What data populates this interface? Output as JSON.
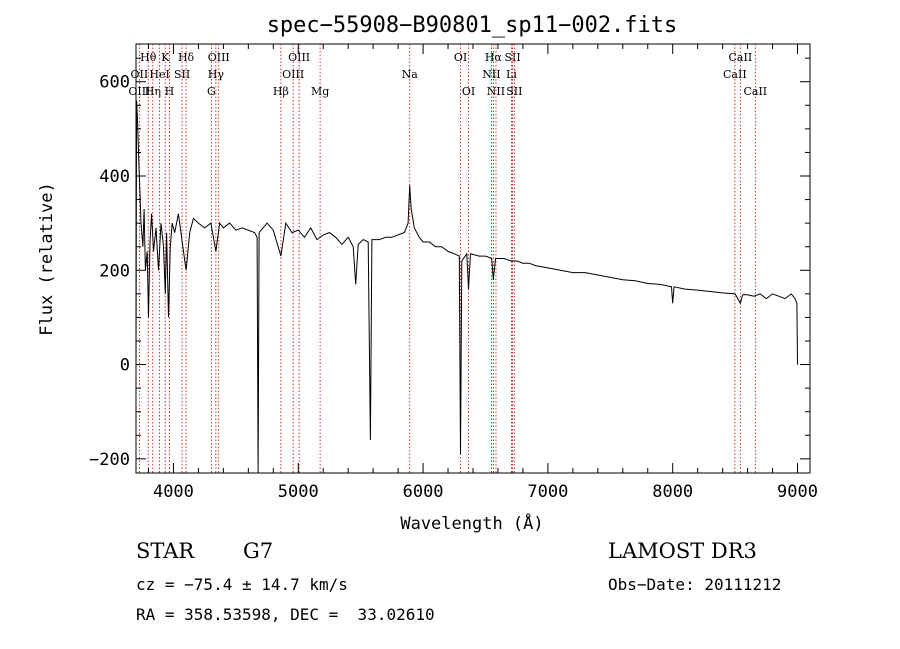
{
  "chart_data": {
    "type": "line",
    "title": "spec−55908−B90801_sp11−002.fits",
    "xlabel": "Wavelength (Å)",
    "ylabel": "Flux (relative)",
    "xlim": [
      3700,
      9100
    ],
    "ylim": [
      -230,
      680
    ],
    "x_ticks": [
      4000,
      5000,
      6000,
      7000,
      8000,
      9000
    ],
    "x_tick_labels": [
      "4000",
      "5000",
      "6000",
      "7000",
      "8000",
      "9000"
    ],
    "y_ticks": [
      -200,
      0,
      200,
      400,
      600
    ],
    "y_tick_labels": [
      "−200",
      "0",
      "200",
      "400",
      "600"
    ],
    "series": [
      {
        "name": "flux",
        "points": [
          [
            3700,
            0
          ],
          [
            3705,
            560
          ],
          [
            3712,
            520
          ],
          [
            3720,
            450
          ],
          [
            3730,
            380
          ],
          [
            3740,
            300
          ],
          [
            3755,
            250
          ],
          [
            3765,
            330
          ],
          [
            3775,
            200
          ],
          [
            3790,
            240
          ],
          [
            3800,
            100
          ],
          [
            3812,
            260
          ],
          [
            3825,
            320
          ],
          [
            3840,
            240
          ],
          [
            3860,
            290
          ],
          [
            3880,
            200
          ],
          [
            3900,
            300
          ],
          [
            3920,
            250
          ],
          [
            3935,
            150
          ],
          [
            3945,
            280
          ],
          [
            3960,
            100
          ],
          [
            3975,
            250
          ],
          [
            3990,
            300
          ],
          [
            4010,
            280
          ],
          [
            4040,
            320
          ],
          [
            4070,
            260
          ],
          [
            4101,
            200
          ],
          [
            4130,
            280
          ],
          [
            4160,
            310
          ],
          [
            4200,
            300
          ],
          [
            4250,
            290
          ],
          [
            4300,
            300
          ],
          [
            4340,
            240
          ],
          [
            4370,
            300
          ],
          [
            4400,
            290
          ],
          [
            4450,
            300
          ],
          [
            4500,
            285
          ],
          [
            4550,
            290
          ],
          [
            4600,
            285
          ],
          [
            4650,
            280
          ],
          [
            4670,
            270
          ],
          [
            4678,
            -230
          ],
          [
            4686,
            280
          ],
          [
            4750,
            300
          ],
          [
            4800,
            285
          ],
          [
            4861,
            230
          ],
          [
            4900,
            300
          ],
          [
            4950,
            280
          ],
          [
            5000,
            285
          ],
          [
            5050,
            270
          ],
          [
            5100,
            290
          ],
          [
            5150,
            265
          ],
          [
            5200,
            275
          ],
          [
            5250,
            280
          ],
          [
            5300,
            270
          ],
          [
            5350,
            255
          ],
          [
            5400,
            270
          ],
          [
            5440,
            250
          ],
          [
            5460,
            170
          ],
          [
            5480,
            255
          ],
          [
            5520,
            265
          ],
          [
            5560,
            260
          ],
          [
            5578,
            -160
          ],
          [
            5590,
            265
          ],
          [
            5650,
            265
          ],
          [
            5700,
            270
          ],
          [
            5750,
            270
          ],
          [
            5800,
            275
          ],
          [
            5850,
            280
          ],
          [
            5880,
            300
          ],
          [
            5893,
            380
          ],
          [
            5905,
            330
          ],
          [
            5930,
            290
          ],
          [
            5970,
            270
          ],
          [
            6000,
            260
          ],
          [
            6050,
            260
          ],
          [
            6100,
            250
          ],
          [
            6150,
            250
          ],
          [
            6200,
            240
          ],
          [
            6250,
            235
          ],
          [
            6290,
            230
          ],
          [
            6300,
            -190
          ],
          [
            6310,
            220
          ],
          [
            6350,
            235
          ],
          [
            6364,
            160
          ],
          [
            6380,
            235
          ],
          [
            6450,
            230
          ],
          [
            6500,
            230
          ],
          [
            6550,
            225
          ],
          [
            6563,
            180
          ],
          [
            6580,
            225
          ],
          [
            6650,
            225
          ],
          [
            6700,
            220
          ],
          [
            6750,
            220
          ],
          [
            6800,
            215
          ],
          [
            6850,
            215
          ],
          [
            6900,
            210
          ],
          [
            7000,
            205
          ],
          [
            7100,
            200
          ],
          [
            7200,
            195
          ],
          [
            7300,
            195
          ],
          [
            7400,
            190
          ],
          [
            7500,
            185
          ],
          [
            7600,
            180
          ],
          [
            7700,
            178
          ],
          [
            7800,
            172
          ],
          [
            7900,
            170
          ],
          [
            7990,
            165
          ],
          [
            8000,
            130
          ],
          [
            8010,
            165
          ],
          [
            8100,
            160
          ],
          [
            8200,
            158
          ],
          [
            8300,
            155
          ],
          [
            8400,
            152
          ],
          [
            8500,
            150
          ],
          [
            8542,
            130
          ],
          [
            8560,
            148
          ],
          [
            8600,
            148
          ],
          [
            8650,
            145
          ],
          [
            8700,
            150
          ],
          [
            8750,
            140
          ],
          [
            8800,
            150
          ],
          [
            8850,
            145
          ],
          [
            8900,
            140
          ],
          [
            8950,
            150
          ],
          [
            8980,
            140
          ],
          [
            8995,
            130
          ],
          [
            9000,
            0
          ]
        ]
      }
    ],
    "line_markers": [
      {
        "label": "Hθ",
        "wl": 3798,
        "row": 0
      },
      {
        "label": "OII",
        "wl": 3727,
        "row": 1
      },
      {
        "label": "OIII",
        "wl": 3727,
        "row": 2
      },
      {
        "label": "Hη",
        "wl": 3835,
        "row": 2
      },
      {
        "label": "K",
        "wl": 3934,
        "row": 0
      },
      {
        "label": "HeI",
        "wl": 3889,
        "row": 1
      },
      {
        "label": "H",
        "wl": 3968,
        "row": 2
      },
      {
        "label": "SII",
        "wl": 4069,
        "row": 1
      },
      {
        "label": "Hδ",
        "wl": 4101,
        "row": 0
      },
      {
        "label": "OIII",
        "wl": 4363,
        "row": 0
      },
      {
        "label": "Hγ",
        "wl": 4340,
        "row": 1
      },
      {
        "label": "G",
        "wl": 4304,
        "row": 2
      },
      {
        "label": "Hβ",
        "wl": 4861,
        "row": 2
      },
      {
        "label": "OIII",
        "wl": 5007,
        "row": 0
      },
      {
        "label": "OIII",
        "wl": 4959,
        "row": 1
      },
      {
        "label": "Mg",
        "wl": 5175,
        "row": 2
      },
      {
        "label": "Na",
        "wl": 5893,
        "row": 1
      },
      {
        "label": "OI",
        "wl": 6300,
        "row": 0
      },
      {
        "label": "OI",
        "wl": 6364,
        "row": 2
      },
      {
        "label": "Hα",
        "wl": 6563,
        "row": 0
      },
      {
        "label": "NII",
        "wl": 6548,
        "row": 1
      },
      {
        "label": "NII",
        "wl": 6584,
        "row": 2
      },
      {
        "label": "SII",
        "wl": 6717,
        "row": 0
      },
      {
        "label": "Li",
        "wl": 6708,
        "row": 1
      },
      {
        "label": "SII",
        "wl": 6731,
        "row": 2
      },
      {
        "label": "CaII",
        "wl": 8542,
        "row": 0
      },
      {
        "label": "CaII",
        "wl": 8498,
        "row": 1
      },
      {
        "label": "CaII",
        "wl": 8662,
        "row": 2
      }
    ]
  },
  "info": {
    "object_class": "STAR",
    "subclass": "G7",
    "survey": "LAMOST DR3",
    "cz": "cz = −75.4 ± 14.7 km/s",
    "obs_date": "Obs−Date: 20111212",
    "coords": "RA = 358.53598, DEC =  33.02610"
  }
}
